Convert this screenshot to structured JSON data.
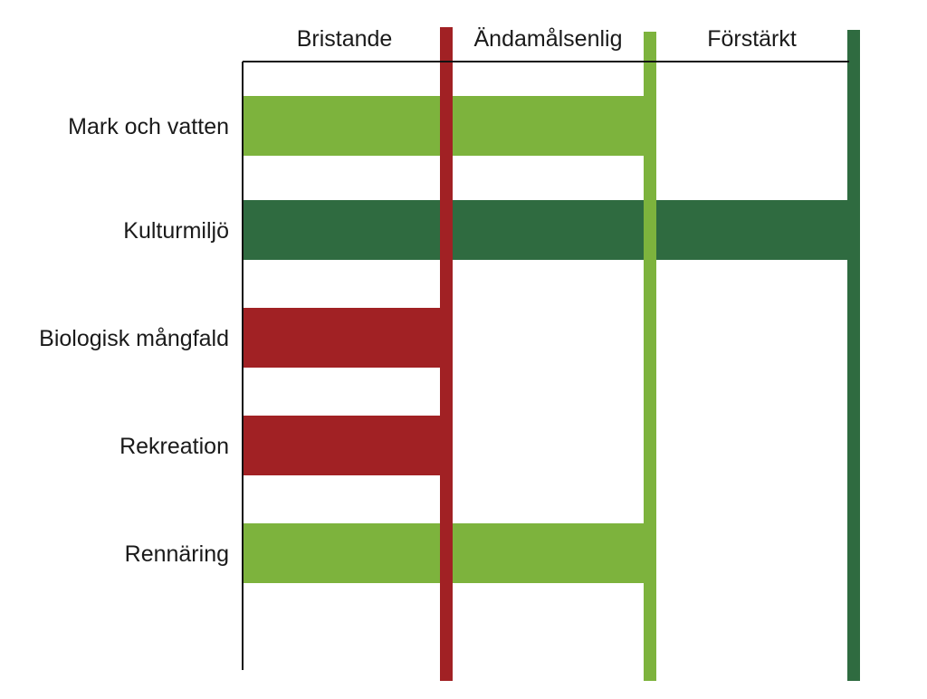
{
  "chart_data": {
    "type": "bar",
    "orientation": "horizontal",
    "title": "",
    "xlabel": "",
    "ylabel": "",
    "levels": [
      {
        "label": "Bristande",
        "color": "#a12124"
      },
      {
        "label": "Ändamålsenlig",
        "color": "#7db33d"
      },
      {
        "label": "Förstärkt",
        "color": "#2f6b40"
      }
    ],
    "categories": [
      "Mark och vatten",
      "Kulturmiljö",
      "Biologisk mångfald",
      "Rekreation",
      "Rennäring"
    ],
    "values": [
      2,
      3,
      1,
      1,
      2
    ],
    "xlim": [
      0,
      3
    ],
    "grid": false,
    "legend": "none"
  }
}
